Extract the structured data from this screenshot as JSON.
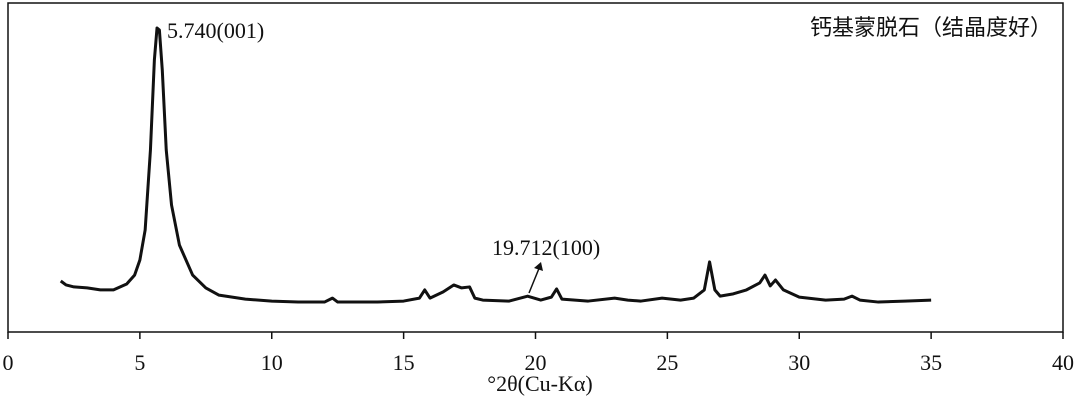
{
  "chart_data": {
    "type": "line",
    "title": "钙基蒙脱石（结晶度好）",
    "x_label": "°2θ(Cu-Kα)",
    "annotations": [
      "5.740(001)",
      "19.712(100)"
    ],
    "xlim": [
      0,
      40
    ],
    "xticks": [
      0,
      5,
      10,
      15,
      20,
      25,
      30,
      35,
      40
    ],
    "ylim": [
      0,
      100
    ],
    "series": [
      {
        "color": "#111111",
        "x": [
          2.0,
          2.2,
          2.5,
          3.0,
          3.5,
          4.0,
          4.5,
          4.8,
          5.0,
          5.2,
          5.4,
          5.55,
          5.65,
          5.74,
          5.85,
          6.0,
          6.2,
          6.5,
          7.0,
          7.5,
          8.0,
          9.0,
          10,
          11,
          12,
          12.3,
          12.5,
          13,
          14,
          15,
          15.6,
          15.8,
          16.0,
          16.5,
          16.9,
          17.2,
          17.5,
          17.7,
          18,
          19,
          19.7,
          20.2,
          20.6,
          20.8,
          21.0,
          22,
          23,
          23.5,
          24,
          24.8,
          25.5,
          26.0,
          26.4,
          26.6,
          26.8,
          27,
          27.5,
          28,
          28.5,
          28.7,
          28.9,
          29.1,
          29.4,
          30,
          31,
          31.7,
          32.0,
          32.3,
          33,
          34,
          35
        ],
        "values": [
          15.5,
          14.3,
          13.7,
          13.4,
          12.8,
          12.8,
          14.6,
          17.3,
          21.9,
          31.0,
          55.3,
          82.7,
          92.4,
          91.8,
          79.6,
          55.3,
          38.6,
          26.4,
          17.3,
          13.4,
          11.2,
          10.0,
          9.4,
          9.1,
          9.1,
          10.3,
          9.1,
          9.1,
          9.1,
          9.4,
          10.3,
          12.8,
          10.3,
          12.2,
          14.3,
          13.4,
          13.7,
          10.3,
          9.7,
          9.4,
          10.9,
          9.7,
          10.6,
          13.1,
          10.0,
          9.4,
          10.3,
          9.7,
          9.4,
          10.3,
          9.7,
          10.3,
          12.8,
          21.3,
          12.8,
          10.9,
          11.6,
          12.8,
          14.9,
          17.3,
          14.0,
          15.8,
          12.8,
          10.6,
          9.7,
          10.0,
          10.9,
          9.7,
          9.1,
          9.4,
          9.7
        ]
      }
    ]
  }
}
